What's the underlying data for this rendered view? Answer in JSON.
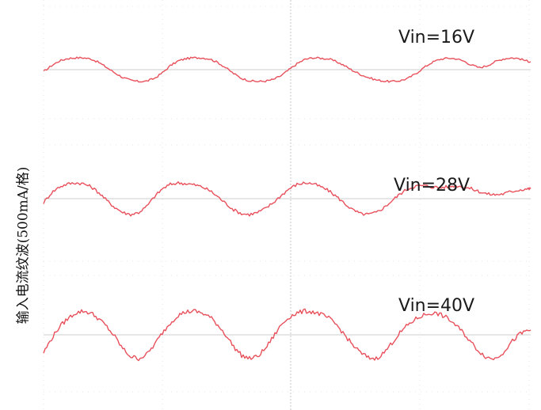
{
  "chart_data": {
    "type": "line",
    "title": "",
    "xlabel": "",
    "ylabel": "输入电流纹波(500mA/格)",
    "grid": true,
    "grid_style": "dotted",
    "trace_color": "#e8505b",
    "baseline_color": "#d6d6d6",
    "series": [
      {
        "name": "Vin=16V",
        "period": 187,
        "peak_to_peak": 0.6,
        "x": [
          0,
          10,
          20,
          30,
          40,
          50,
          60,
          70,
          80,
          90,
          100,
          110,
          120,
          130,
          140,
          150,
          160,
          170,
          180,
          190,
          200,
          210,
          220,
          230,
          240,
          250,
          260,
          270,
          280,
          290,
          300,
          310,
          320,
          330,
          340,
          350,
          360,
          370,
          380,
          390,
          400,
          410,
          420,
          430,
          440,
          450,
          460,
          470,
          480,
          490,
          500,
          510,
          520,
          530,
          540,
          550,
          560,
          570,
          580,
          590,
          600,
          610,
          615
        ],
        "y": [
          -0.05,
          0.1,
          0.22,
          0.28,
          0.3,
          0.3,
          0.27,
          0.18,
          0.05,
          -0.08,
          -0.2,
          -0.27,
          -0.3,
          -0.29,
          -0.22,
          -0.08,
          0.1,
          0.22,
          0.28,
          0.3,
          0.3,
          0.27,
          0.18,
          0.05,
          -0.1,
          -0.22,
          -0.28,
          -0.3,
          -0.29,
          -0.25,
          -0.15,
          0.0,
          0.15,
          0.26,
          0.3,
          0.29,
          0.27,
          0.2,
          0.1,
          -0.02,
          -0.12,
          -0.2,
          -0.26,
          -0.29,
          -0.3,
          -0.28,
          -0.22,
          -0.1,
          0.05,
          0.18,
          0.26,
          0.29,
          0.28,
          0.22,
          0.12,
          0.05,
          0.1,
          0.2,
          0.27,
          0.3,
          0.28,
          0.22,
          0.2
        ]
      },
      {
        "name": "Vin=28V",
        "period": 187,
        "peak_to_peak": 0.8,
        "x": [
          0,
          10,
          20,
          30,
          40,
          50,
          60,
          70,
          80,
          90,
          100,
          110,
          120,
          130,
          140,
          150,
          160,
          170,
          180,
          190,
          200,
          210,
          220,
          230,
          240,
          250,
          260,
          270,
          280,
          290,
          300,
          310,
          320,
          330,
          340,
          350,
          360,
          370,
          380,
          390,
          400,
          410,
          420,
          430,
          440,
          450,
          460,
          470,
          480,
          490,
          500,
          510,
          520,
          530,
          540,
          550,
          560,
          570,
          580,
          590,
          600,
          610,
          615
        ],
        "y": [
          -0.1,
          0.15,
          0.3,
          0.37,
          0.4,
          0.38,
          0.3,
          0.15,
          -0.05,
          -0.22,
          -0.35,
          -0.4,
          -0.35,
          -0.2,
          0.05,
          0.25,
          0.36,
          0.4,
          0.38,
          0.35,
          0.3,
          0.2,
          0.05,
          -0.12,
          -0.28,
          -0.38,
          -0.4,
          -0.35,
          -0.25,
          -0.1,
          0.08,
          0.25,
          0.36,
          0.4,
          0.38,
          0.3,
          0.2,
          0.05,
          -0.12,
          -0.28,
          -0.38,
          -0.4,
          -0.35,
          -0.22,
          -0.05,
          0.12,
          0.25,
          0.32,
          0.33,
          0.3,
          0.28,
          0.3,
          0.33,
          0.3,
          0.25,
          0.18,
          0.12,
          0.1,
          0.12,
          0.18,
          0.22,
          0.25,
          0.25
        ]
      },
      {
        "name": "Vin=40V",
        "period": 187,
        "peak_to_peak": 1.2,
        "x": [
          0,
          10,
          20,
          30,
          40,
          50,
          60,
          70,
          80,
          90,
          100,
          110,
          120,
          130,
          140,
          150,
          160,
          170,
          180,
          190,
          200,
          210,
          220,
          230,
          240,
          250,
          260,
          270,
          280,
          290,
          300,
          310,
          320,
          330,
          340,
          350,
          360,
          370,
          380,
          390,
          400,
          410,
          420,
          430,
          440,
          450,
          460,
          470,
          480,
          490,
          500,
          510,
          520,
          530,
          540,
          550,
          560,
          570,
          580,
          590,
          600,
          610,
          615
        ],
        "y": [
          -0.45,
          -0.1,
          0.2,
          0.4,
          0.55,
          0.6,
          0.55,
          0.4,
          0.2,
          -0.05,
          -0.35,
          -0.55,
          -0.6,
          -0.5,
          -0.25,
          0.05,
          0.3,
          0.5,
          0.58,
          0.6,
          0.55,
          0.45,
          0.25,
          0.0,
          -0.3,
          -0.52,
          -0.6,
          -0.55,
          -0.35,
          -0.05,
          0.25,
          0.45,
          0.55,
          0.6,
          0.58,
          0.52,
          0.42,
          0.25,
          0.0,
          -0.25,
          -0.45,
          -0.58,
          -0.6,
          -0.45,
          -0.2,
          0.05,
          0.25,
          0.4,
          0.5,
          0.55,
          0.52,
          0.42,
          0.25,
          0.05,
          -0.2,
          -0.42,
          -0.58,
          -0.6,
          -0.45,
          -0.2,
          0.0,
          0.1,
          0.12
        ]
      }
    ]
  }
}
